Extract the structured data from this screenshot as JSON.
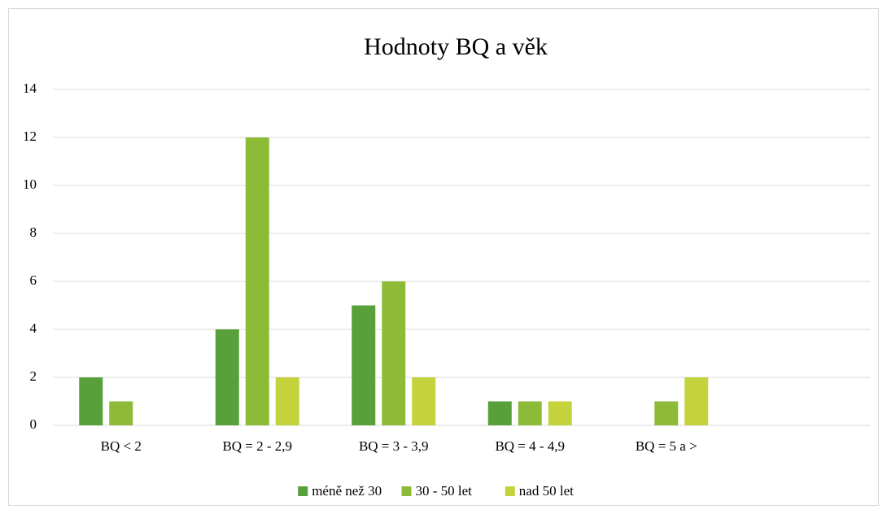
{
  "chart_data": {
    "type": "bar",
    "title": "Hodnoty BQ a věk",
    "categories": [
      "BQ < 2",
      "BQ = 2 - 2,9",
      "BQ = 3 - 3,9",
      "BQ = 4 - 4,9",
      "BQ = 5 a >",
      null
    ],
    "series": [
      {
        "name": "méně než 30",
        "color": "#57a03a",
        "values": [
          2,
          4,
          5,
          1,
          0,
          null
        ]
      },
      {
        "name": "30 - 50 let",
        "color": "#8dbb38",
        "values": [
          1,
          12,
          6,
          1,
          1,
          null
        ]
      },
      {
        "name": "nad 50 let",
        "color": "#c4d33c",
        "values": [
          0,
          2,
          2,
          1,
          2,
          null
        ]
      }
    ],
    "ylim": [
      0,
      14
    ],
    "yticks": [
      0,
      2,
      4,
      6,
      8,
      10,
      12,
      14
    ],
    "grid": true,
    "legend": "bottom"
  }
}
